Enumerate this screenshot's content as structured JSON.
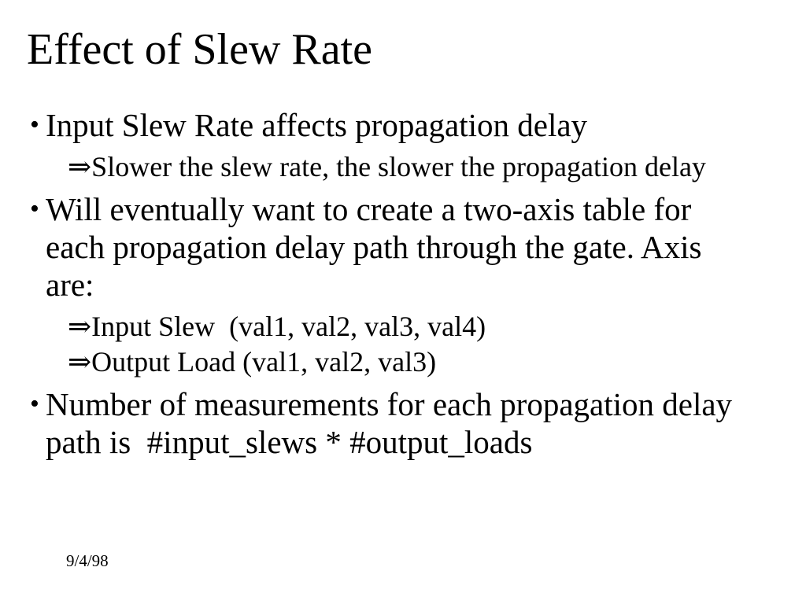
{
  "slide": {
    "title": "Effect of Slew Rate",
    "bullets": [
      {
        "level": 1,
        "marker": "•",
        "text": "Input Slew Rate affects propagation delay"
      },
      {
        "level": 2,
        "marker": "⇒",
        "text": "Slower the slew rate, the slower the propagation delay"
      },
      {
        "level": 1,
        "marker": "•",
        "text": "Will eventually want to create a two-axis table for\neach propagation delay path through the gate. Axis\nare:"
      },
      {
        "level": 2,
        "marker": "⇒",
        "text": "Input Slew  (val1, val2, val3, val4)"
      },
      {
        "level": 2,
        "marker": "⇒",
        "text": "Output Load (val1, val2, val3)"
      },
      {
        "level": 1,
        "marker": "•",
        "text": "Number of measurements for each propagation delay\npath is  #input_slews * #output_loads"
      }
    ],
    "footer": {
      "date": "9/4/98"
    },
    "colors": {
      "background": "#ffffff",
      "text": "#000000"
    }
  }
}
